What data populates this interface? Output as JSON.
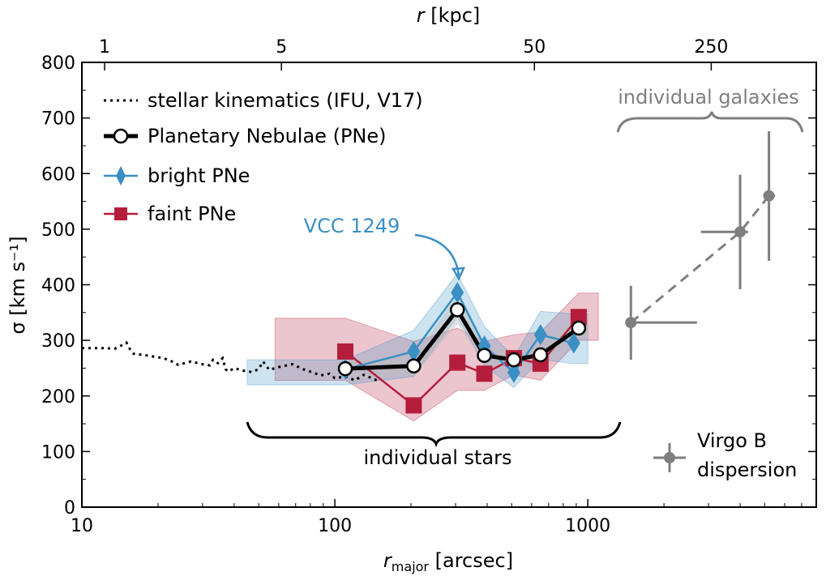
{
  "chart_data": {
    "type": "line",
    "x_scale": "log",
    "xlim": [
      10,
      8000
    ],
    "ylim": [
      0,
      800
    ],
    "xlabel": {
      "main": "r",
      "sub": "major",
      "unit": " [arcsec]"
    },
    "ylabel": "σ [km s⁻¹]",
    "x_ticks": [
      {
        "value": 10,
        "label": "10"
      },
      {
        "value": 100,
        "label": "100"
      },
      {
        "value": 1000,
        "label": "1000"
      }
    ],
    "y_ticks": [
      {
        "value": 0,
        "label": "0"
      },
      {
        "value": 100,
        "label": "100"
      },
      {
        "value": 200,
        "label": "200"
      },
      {
        "value": 300,
        "label": "300"
      },
      {
        "value": 400,
        "label": "400"
      },
      {
        "value": 500,
        "label": "500"
      },
      {
        "value": 600,
        "label": "600"
      },
      {
        "value": 700,
        "label": "700"
      },
      {
        "value": 800,
        "label": "800"
      }
    ],
    "top_axis": {
      "label_main": "r",
      "label_unit": " [kpc]",
      "ticks": [
        {
          "x": 12.3,
          "label": "1"
        },
        {
          "x": 61.5,
          "label": "5"
        },
        {
          "x": 615,
          "label": "50"
        },
        {
          "x": 3075,
          "label": "250"
        }
      ]
    },
    "series": [
      {
        "name": "stellar kinematics (IFU, V17)",
        "color": "#000000",
        "style": "dotted",
        "x": [
          10,
          12,
          13.5,
          14.5,
          15,
          15.5,
          16,
          18,
          21,
          23,
          24,
          25,
          27,
          30,
          32,
          33,
          34.5,
          36,
          37,
          38,
          40,
          44,
          47,
          50,
          52,
          55,
          60,
          68,
          75,
          82,
          88,
          95,
          100,
          110,
          120,
          130,
          140,
          150
        ],
        "y": [
          286,
          286,
          285,
          292,
          296,
          284,
          276,
          273,
          268,
          261,
          256,
          258,
          262,
          257,
          255,
          265,
          259,
          268,
          248,
          244,
          250,
          245,
          243,
          248,
          262,
          247,
          252,
          257,
          248,
          242,
          237,
          240,
          232,
          235,
          228,
          238,
          232,
          226
        ]
      },
      {
        "name": "Planetary Nebulae (PNe)",
        "color": "#000000",
        "style": "solid",
        "marker": "circle",
        "x": [
          110,
          205,
          305,
          390,
          510,
          650,
          920
        ],
        "y": [
          249,
          254,
          355,
          273,
          265,
          274,
          322
        ],
        "band_low": [
          235,
          238,
          330,
          262,
          252,
          262,
          305
        ],
        "band_high": [
          262,
          270,
          378,
          288,
          278,
          288,
          345
        ],
        "band_x_end": 1000
      },
      {
        "name": "bright PNe",
        "color": "#3a8fc4",
        "style": "solid",
        "marker": "diamond",
        "x": [
          110,
          205,
          305,
          390,
          510,
          650,
          880
        ],
        "y": [
          248,
          280,
          386,
          290,
          242,
          310,
          295
        ],
        "band_low": [
          220,
          235,
          342,
          255,
          215,
          266,
          258
        ],
        "band_high": [
          265,
          318,
          420,
          325,
          270,
          352,
          348
        ],
        "band_x_start": 45,
        "band_x_end": 1000
      },
      {
        "name": "faint PNe",
        "color": "#b51d3c",
        "style": "solid",
        "marker": "square",
        "x": [
          110,
          205,
          305,
          390,
          510,
          650,
          920
        ],
        "y": [
          280,
          183,
          260,
          240,
          268,
          258,
          342
        ],
        "band_low": [
          228,
          155,
          210,
          210,
          238,
          228,
          300
        ],
        "band_high": [
          340,
          298,
          322,
          298,
          310,
          315,
          385
        ],
        "band_x_start": 58,
        "band_x_end": 1100
      },
      {
        "name": "Virgo B dispersion",
        "color": "#7f7f7f",
        "style": "dashed",
        "marker": "circle",
        "x": [
          1480,
          4000,
          5200
        ],
        "y": [
          332,
          495,
          560
        ],
        "xerr_low": [
          1480,
          2800,
          5000
        ],
        "xerr_high": [
          2700,
          4300,
          5500
        ],
        "yerr_low": [
          265,
          392,
          443
        ],
        "yerr_high": [
          398,
          598,
          676
        ]
      }
    ],
    "annotations": {
      "vcc": "VCC 1249",
      "individual_stars": "individual stars",
      "individual_galaxies": "individual galaxies",
      "virgo_line1": "Virgo B",
      "virgo_line2": "dispersion"
    },
    "legend_position": "upper-left",
    "grid": false,
    "colors": {
      "blue": "#3a8fc4",
      "red": "#b51d3c",
      "gray": "#7f7f7f",
      "black": "#000000"
    }
  }
}
